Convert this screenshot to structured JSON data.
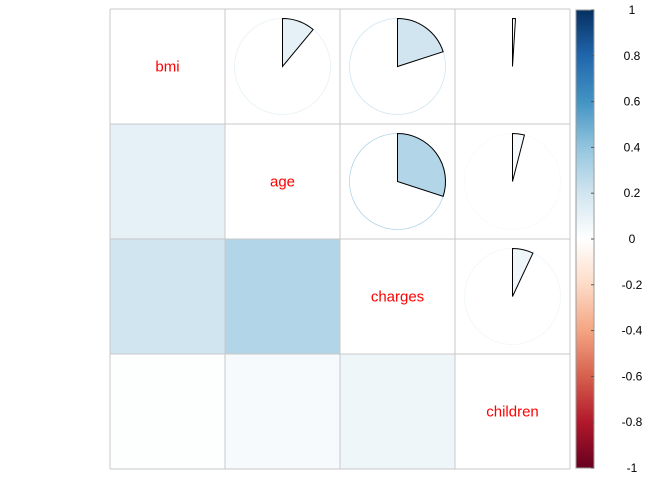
{
  "chart_data": {
    "type": "heatmap",
    "variables": [
      "bmi",
      "age",
      "charges",
      "children"
    ],
    "matrix": [
      [
        1.0,
        0.11,
        0.2,
        0.01
      ],
      [
        0.11,
        1.0,
        0.3,
        0.04
      ],
      [
        0.2,
        0.3,
        1.0,
        0.07
      ],
      [
        0.01,
        0.04,
        0.07,
        1.0
      ]
    ],
    "upper_method": "pie",
    "lower_method": "color",
    "label_color": "#ff0000",
    "colorbar": {
      "range": [
        -1,
        1
      ],
      "ticks": [
        1,
        0.8,
        0.6,
        0.4,
        0.2,
        0,
        -0.2,
        -0.4,
        -0.6,
        -0.8,
        -1
      ],
      "tick_labels": [
        "1",
        "0.8",
        "0.6",
        "0.4",
        "0.2",
        "0",
        "-0.2",
        "-0.4",
        "-0.6",
        "-0.8",
        "-1"
      ],
      "palette": [
        "#67001F",
        "#B2182B",
        "#D6604D",
        "#F4A582",
        "#FDDBC7",
        "#FFFFFF",
        "#D1E5F0",
        "#92C5DE",
        "#4393C3",
        "#2166AC",
        "#053061"
      ]
    }
  }
}
